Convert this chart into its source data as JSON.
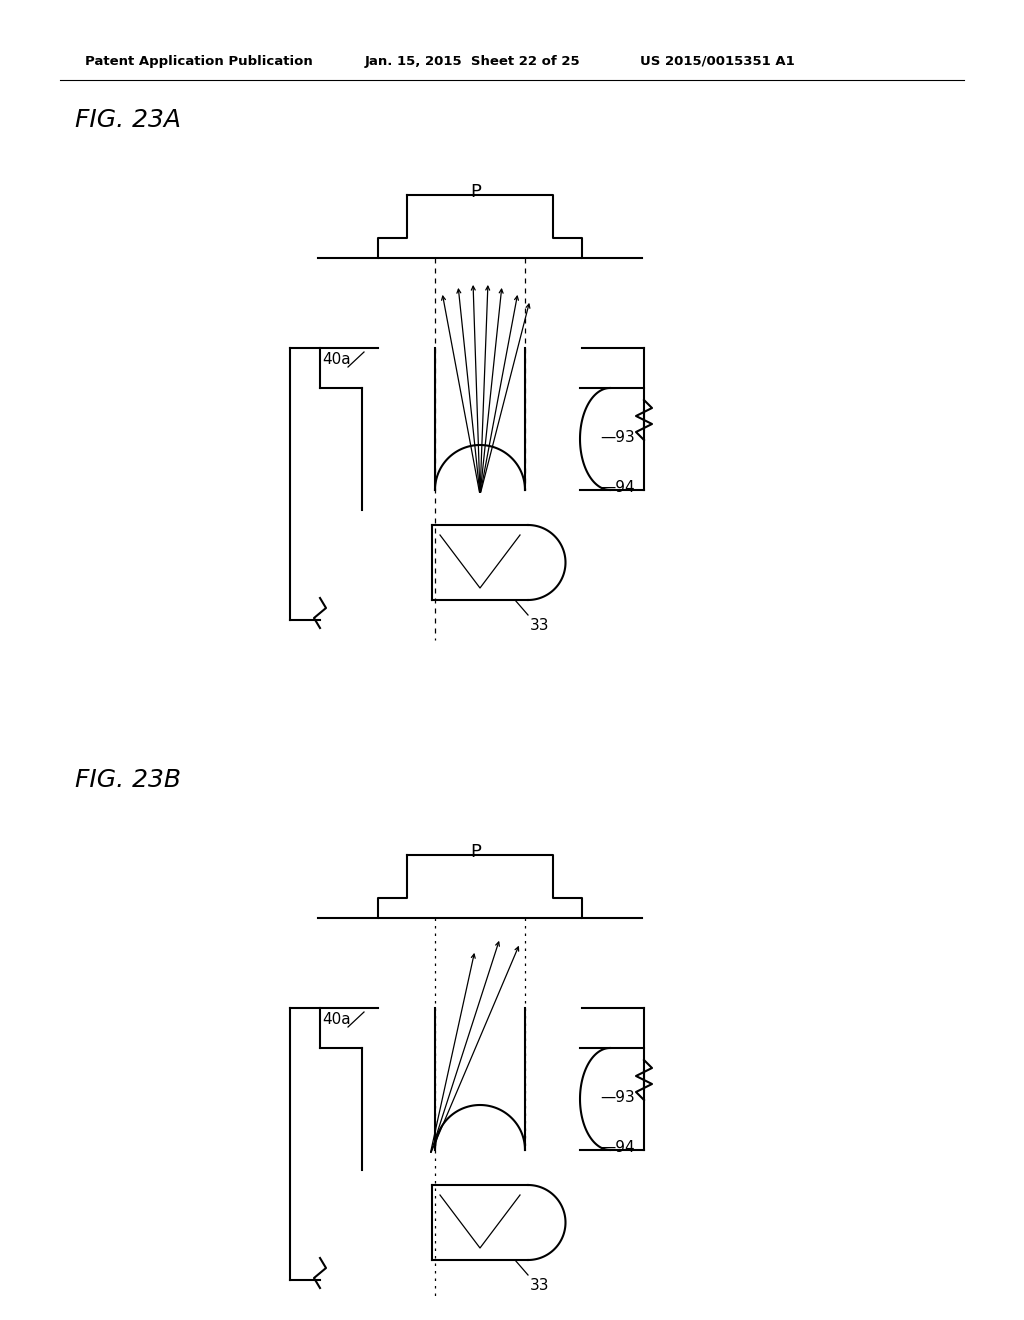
{
  "background_color": "#ffffff",
  "header_text": "Patent Application Publication",
  "header_date": "Jan. 15, 2015  Sheet 22 of 25",
  "header_patent": "US 2015/0015351 A1",
  "fig_a_label": "FIG. 23A",
  "fig_b_label": "FIG. 23B",
  "lc": "#000000",
  "lw": 1.5,
  "lw_thin": 0.9
}
